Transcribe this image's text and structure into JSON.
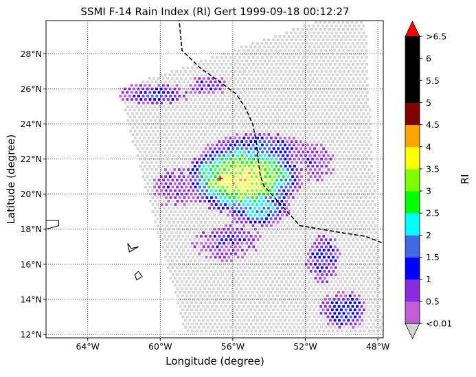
{
  "chart_data": {
    "type": "heatmap",
    "title": "SSMI F-14 Rain Index (RI) Gert 1999-09-18 00:12:27",
    "xlabel": "Longitude (degree)",
    "ylabel": "Latitude (degree)",
    "xlim": [
      -66.3,
      -47.7
    ],
    "ylim": [
      11.8,
      29.9
    ],
    "grid": true,
    "grid_style": "dotted",
    "x_ticks": [
      {
        "value": -64,
        "label": "64°W"
      },
      {
        "value": -60,
        "label": "60°W"
      },
      {
        "value": -56,
        "label": "56°W"
      },
      {
        "value": -52,
        "label": "52°W"
      },
      {
        "value": -48,
        "label": "48°W"
      }
    ],
    "y_ticks": [
      {
        "value": 12,
        "label": "12°N"
      },
      {
        "value": 14,
        "label": "14°N"
      },
      {
        "value": 16,
        "label": "16°N"
      },
      {
        "value": 18,
        "label": "18°N"
      },
      {
        "value": 20,
        "label": "20°N"
      },
      {
        "value": 22,
        "label": "22°N"
      },
      {
        "value": 24,
        "label": "24°N"
      },
      {
        "value": 26,
        "label": "26°N"
      },
      {
        "value": 28,
        "label": "28°N"
      }
    ],
    "colorbar": {
      "label": "RI",
      "tick_labels": [
        "<0.01",
        "0.5",
        "1",
        "1.5",
        "2",
        "2.5",
        "3",
        "3.5",
        "4",
        "4.5",
        "5",
        "5.5",
        "6",
        ">6.5"
      ],
      "under_color": "#d3d3d3",
      "over_color": "#ff0000",
      "bin_colors": [
        "#bf5fd6",
        "#8a2be2",
        "#0000ff",
        "#4169e1",
        "#00ffff",
        "#00ff00",
        "#7fff00",
        "#ffff00",
        "#ffa500",
        "#800000",
        "#000000",
        "#000000",
        "#000000"
      ]
    },
    "swath_corners": [
      [
        -62.3,
        26.0
      ],
      [
        -51.3,
        29.9
      ],
      [
        -48.7,
        29.9
      ],
      [
        -47.7,
        12.2
      ],
      [
        -58.6,
        12.0
      ]
    ],
    "track": [
      [
        -59.1,
        31.5
      ],
      [
        -58.8,
        28.2
      ],
      [
        -57.8,
        27.2
      ],
      [
        -56.7,
        26.4
      ],
      [
        -55.8,
        25.7
      ],
      [
        -55.3,
        24.9
      ],
      [
        -54.9,
        24.0
      ],
      [
        -54.7,
        23.0
      ],
      [
        -54.6,
        22.0
      ],
      [
        -54.5,
        21.2
      ],
      [
        -54.4,
        20.8
      ],
      [
        -54.3,
        20.5
      ],
      [
        -53.7,
        19.8
      ],
      [
        -52.3,
        18.2
      ],
      [
        -50.0,
        17.8
      ],
      [
        -48.7,
        17.6
      ],
      [
        -47.7,
        17.2
      ]
    ],
    "storm_center": [
      -56.7,
      20.9
    ],
    "rain_features": [
      {
        "name": "core",
        "lon": -55.4,
        "lat": 20.9,
        "rlon": 3.0,
        "rlat": 1.9,
        "peak": 3.9
      },
      {
        "name": "ring-north",
        "lon": -54.6,
        "lat": 22.6,
        "rlon": 2.6,
        "rlat": 0.8,
        "peak": 1.7
      },
      {
        "name": "band-south",
        "lon": -54.6,
        "lat": 19.2,
        "rlon": 1.6,
        "rlat": 1.0,
        "peak": 2.3
      },
      {
        "name": "band-northwest",
        "lon": -60.3,
        "lat": 25.7,
        "rlon": 1.8,
        "rlat": 0.6,
        "peak": 1.3
      },
      {
        "name": "band-north",
        "lon": -57.3,
        "lat": 26.2,
        "rlon": 1.1,
        "rlat": 0.5,
        "peak": 0.9
      },
      {
        "name": "cells-west",
        "lon": -59.2,
        "lat": 20.4,
        "rlon": 1.1,
        "rlat": 1.1,
        "peak": 0.9
      },
      {
        "name": "cells-southwest",
        "lon": -56.3,
        "lat": 17.3,
        "rlon": 1.8,
        "rlat": 1.0,
        "peak": 0.8
      },
      {
        "name": "cells-east",
        "lon": -51.0,
        "lat": 16.3,
        "rlon": 0.9,
        "rlat": 1.3,
        "peak": 1.3
      },
      {
        "name": "cells-southeast",
        "lon": -49.9,
        "lat": 13.4,
        "rlon": 1.2,
        "rlat": 1.0,
        "peak": 1.6
      },
      {
        "name": "cells-east-ring",
        "lon": -51.5,
        "lat": 21.8,
        "rlon": 1.0,
        "rlat": 1.0,
        "peak": 0.8
      }
    ],
    "coastlines": [
      [
        [
          -66.3,
          18.5
        ],
        [
          -65.6,
          18.5
        ],
        [
          -65.6,
          18.2
        ],
        [
          -66.3,
          18.0
        ]
      ],
      [
        [
          -61.8,
          17.2
        ],
        [
          -61.6,
          16.9
        ],
        [
          -61.2,
          17.0
        ],
        [
          -61.7,
          16.7
        ],
        [
          -61.8,
          17.2
        ]
      ],
      [
        [
          -61.2,
          15.6
        ],
        [
          -61.0,
          15.3
        ],
        [
          -61.3,
          15.1
        ],
        [
          -61.4,
          15.4
        ],
        [
          -61.2,
          15.6
        ]
      ]
    ]
  }
}
